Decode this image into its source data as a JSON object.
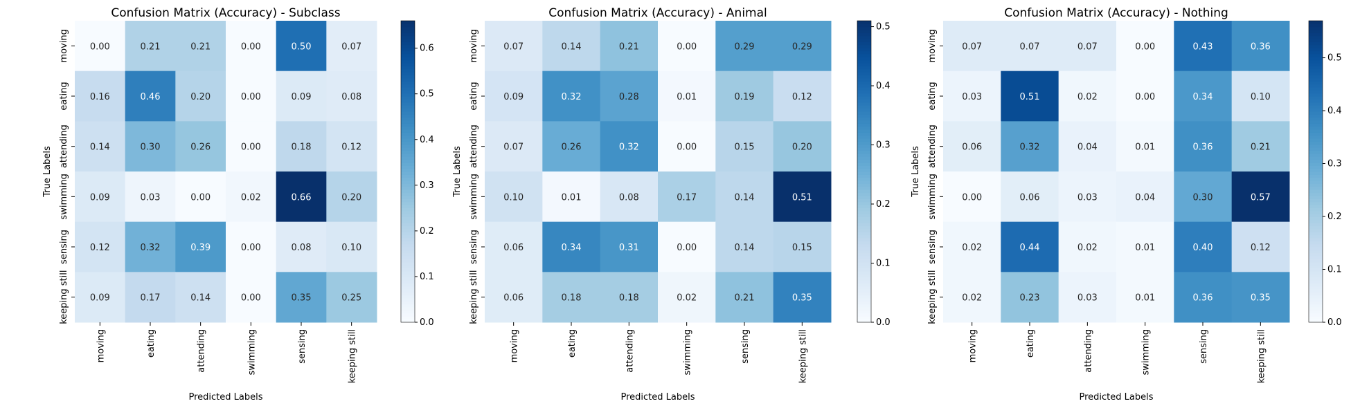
{
  "chart_data": [
    {
      "type": "heatmap",
      "title": "Confusion Matrix (Accuracy) - Subclass",
      "xlabel": "Predicted Labels",
      "ylabel": "True Labels",
      "x_categories": [
        "moving",
        "eating",
        "attending",
        "swimming",
        "sensing",
        "keeping still"
      ],
      "y_categories": [
        "moving",
        "eating",
        "attending",
        "swimming",
        "sensing",
        "keeping still"
      ],
      "values": [
        [
          0.0,
          0.21,
          0.21,
          0.0,
          0.5,
          0.07
        ],
        [
          0.16,
          0.46,
          0.2,
          0.0,
          0.09,
          0.08
        ],
        [
          0.14,
          0.3,
          0.26,
          0.0,
          0.18,
          0.12
        ],
        [
          0.09,
          0.03,
          0.0,
          0.02,
          0.66,
          0.2
        ],
        [
          0.12,
          0.32,
          0.39,
          0.0,
          0.08,
          0.1
        ],
        [
          0.09,
          0.17,
          0.14,
          0.0,
          0.35,
          0.25
        ]
      ],
      "value_labels": [
        [
          "0.00",
          "0.21",
          "0.21",
          "0.00",
          "0.50",
          "0.07"
        ],
        [
          "0.16",
          "0.46",
          "0.20",
          "0.00",
          "0.09",
          "0.08"
        ],
        [
          "0.14",
          "0.30",
          "0.26",
          "0.00",
          "0.18",
          "0.12"
        ],
        [
          "0.09",
          "0.03",
          "0.00",
          "0.02",
          "0.66",
          "0.20"
        ],
        [
          "0.12",
          "0.32",
          "0.39",
          "0.00",
          "0.08",
          "0.10"
        ],
        [
          "0.09",
          "0.17",
          "0.14",
          "0.00",
          "0.35",
          "0.25"
        ]
      ],
      "colorscale": "Blues",
      "colorbar": {
        "range": [
          0,
          0.66
        ],
        "ticks": [
          0,
          0.1,
          0.2,
          0.3,
          0.4,
          0.5,
          0.6
        ],
        "tick_labels": [
          "0.0",
          "0.1",
          "0.2",
          "0.3",
          "0.4",
          "0.5",
          "0.6"
        ]
      }
    },
    {
      "type": "heatmap",
      "title": "Confusion Matrix (Accuracy) - Animal",
      "xlabel": "Predicted Labels",
      "ylabel": "True Labels",
      "x_categories": [
        "moving",
        "eating",
        "attending",
        "swimming",
        "sensing",
        "keeping still"
      ],
      "y_categories": [
        "moving",
        "eating",
        "attending",
        "swimming",
        "sensing",
        "keeping still"
      ],
      "values": [
        [
          0.07,
          0.14,
          0.21,
          0.0,
          0.29,
          0.29
        ],
        [
          0.09,
          0.32,
          0.28,
          0.01,
          0.19,
          0.12
        ],
        [
          0.07,
          0.26,
          0.32,
          0.0,
          0.15,
          0.2
        ],
        [
          0.1,
          0.01,
          0.08,
          0.17,
          0.14,
          0.51
        ],
        [
          0.06,
          0.34,
          0.31,
          0.0,
          0.14,
          0.15
        ],
        [
          0.06,
          0.18,
          0.18,
          0.02,
          0.21,
          0.35
        ]
      ],
      "value_labels": [
        [
          "0.07",
          "0.14",
          "0.21",
          "0.00",
          "0.29",
          "0.29"
        ],
        [
          "0.09",
          "0.32",
          "0.28",
          "0.01",
          "0.19",
          "0.12"
        ],
        [
          "0.07",
          "0.26",
          "0.32",
          "0.00",
          "0.15",
          "0.20"
        ],
        [
          "0.10",
          "0.01",
          "0.08",
          "0.17",
          "0.14",
          "0.51"
        ],
        [
          "0.06",
          "0.34",
          "0.31",
          "0.00",
          "0.14",
          "0.15"
        ],
        [
          "0.06",
          "0.18",
          "0.18",
          "0.02",
          "0.21",
          "0.35"
        ]
      ],
      "colorscale": "Blues",
      "colorbar": {
        "range": [
          0,
          0.51
        ],
        "ticks": [
          0,
          0.1,
          0.2,
          0.3,
          0.4,
          0.5
        ],
        "tick_labels": [
          "0.0",
          "0.1",
          "0.2",
          "0.3",
          "0.4",
          "0.5"
        ]
      }
    },
    {
      "type": "heatmap",
      "title": "Confusion Matrix (Accuracy) - Nothing",
      "xlabel": "Predicted Labels",
      "ylabel": "True Labels",
      "x_categories": [
        "moving",
        "eating",
        "attending",
        "swimming",
        "sensing",
        "keeping still"
      ],
      "y_categories": [
        "moving",
        "eating",
        "attending",
        "swimming",
        "sensing",
        "keeping still"
      ],
      "values": [
        [
          0.07,
          0.07,
          0.07,
          0.0,
          0.43,
          0.36
        ],
        [
          0.03,
          0.51,
          0.02,
          0.0,
          0.34,
          0.1
        ],
        [
          0.06,
          0.32,
          0.04,
          0.01,
          0.36,
          0.21
        ],
        [
          0.0,
          0.06,
          0.03,
          0.04,
          0.3,
          0.57
        ],
        [
          0.02,
          0.44,
          0.02,
          0.01,
          0.4,
          0.12
        ],
        [
          0.02,
          0.23,
          0.03,
          0.01,
          0.36,
          0.35
        ]
      ],
      "value_labels": [
        [
          "0.07",
          "0.07",
          "0.07",
          "0.00",
          "0.43",
          "0.36"
        ],
        [
          "0.03",
          "0.51",
          "0.02",
          "0.00",
          "0.34",
          "0.10"
        ],
        [
          "0.06",
          "0.32",
          "0.04",
          "0.01",
          "0.36",
          "0.21"
        ],
        [
          "0.00",
          "0.06",
          "0.03",
          "0.04",
          "0.30",
          "0.57"
        ],
        [
          "0.02",
          "0.44",
          "0.02",
          "0.01",
          "0.40",
          "0.12"
        ],
        [
          "0.02",
          "0.23",
          "0.03",
          "0.01",
          "0.36",
          "0.35"
        ]
      ],
      "colorscale": "Blues",
      "colorbar": {
        "range": [
          0,
          0.57
        ],
        "ticks": [
          0,
          0.1,
          0.2,
          0.3,
          0.4,
          0.5
        ],
        "tick_labels": [
          "0.0",
          "0.1",
          "0.2",
          "0.3",
          "0.4",
          "0.5"
        ]
      }
    }
  ]
}
